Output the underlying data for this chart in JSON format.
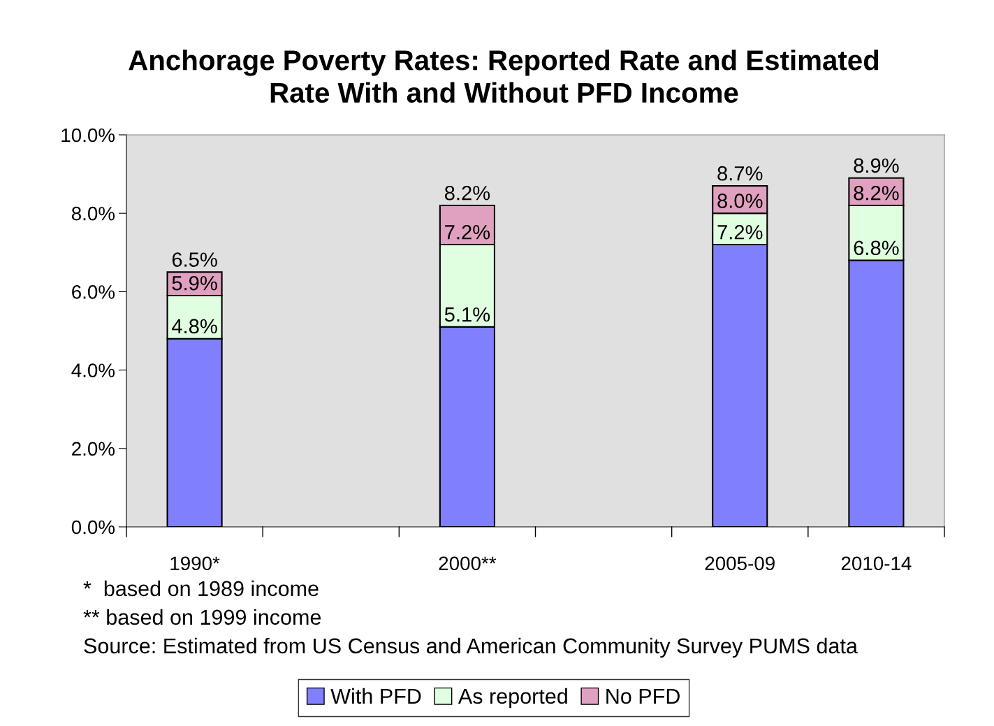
{
  "chart_data": {
    "type": "bar",
    "stacked": true,
    "title": "Anchorage Poverty Rates: Reported Rate and Estimated\nRate With and Without PFD Income",
    "categories": [
      "1990*",
      null,
      "2000**",
      null,
      "2005-09",
      "2010-14"
    ],
    "series": [
      {
        "name": "With PFD",
        "color": "#8080ff",
        "values": [
          4.8,
          null,
          5.1,
          null,
          7.2,
          6.8
        ],
        "value_labels": [
          "4.8%",
          null,
          "5.1%",
          null,
          "7.2%",
          "6.8%"
        ]
      },
      {
        "name": "As reported",
        "color": "#e0ffe0",
        "values": [
          1.1,
          null,
          2.1,
          null,
          0.8,
          1.4
        ]
      },
      {
        "name": "No PFD",
        "color": "#e0a0c0",
        "values": [
          0.6,
          null,
          1.0,
          null,
          0.7,
          0.7
        ]
      }
    ],
    "ylim": [
      0,
      10
    ],
    "yticks": [
      {
        "value": 0,
        "label": "0.0%"
      },
      {
        "value": 2,
        "label": "2.0%"
      },
      {
        "value": 4,
        "label": "4.0%"
      },
      {
        "value": 6,
        "label": "6.0%"
      },
      {
        "value": 8,
        "label": "8.0%"
      },
      {
        "value": 10,
        "label": "10.0%"
      }
    ],
    "grid": false,
    "legend": "bottom",
    "annotations": [
      {
        "text": "5.9%",
        "x": "1990*",
        "y": 5.9
      },
      {
        "text": "7.2%",
        "x": "2000**",
        "y": 7.2
      },
      {
        "text": "8.0%",
        "x": "2005-09",
        "y": 8.0
      },
      {
        "text": "8.2%",
        "x": "2010-14",
        "y": 8.2
      },
      {
        "text": "6.5%",
        "x": "1990*",
        "y": 6.5
      },
      {
        "text": "8.2%",
        "x": "2000**",
        "y": 8.2
      },
      {
        "text": "8.7%",
        "x": "2005-09",
        "y": 8.7
      },
      {
        "text": "8.9%",
        "x": "2010-14",
        "y": 8.9
      },
      "*  based on 1989 income",
      "** based on 1999 income",
      "Source: Estimated from US Census and American Community Survey PUMS data"
    ]
  }
}
